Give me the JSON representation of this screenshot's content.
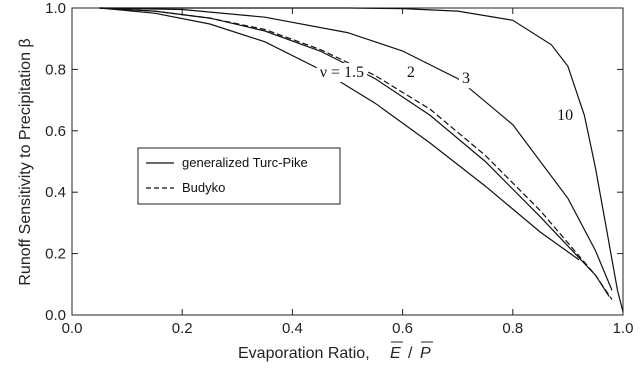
{
  "chart_data": {
    "type": "line",
    "xlabel": "Evaporation Ratio,",
    "xlabel_math": {
      "numerator": "E",
      "slash": "/",
      "denominator": "P"
    },
    "ylabel": "Runoff Sensitivity to Precipitation β",
    "xlim": [
      0.0,
      1.0
    ],
    "ylim": [
      0.0,
      1.0
    ],
    "x_ticks": [
      "0.0",
      "0.2",
      "0.4",
      "0.6",
      "0.8",
      "1.0"
    ],
    "y_ticks": [
      "0.0",
      "0.2",
      "0.4",
      "0.6",
      "0.8",
      "1.0"
    ],
    "legend": {
      "placement": "center-left",
      "entries": [
        {
          "label": "generalized Turc-Pike",
          "style": "solid"
        },
        {
          "label": "Budyko",
          "style": "dashed"
        }
      ]
    },
    "series": [
      {
        "label": "ν = 1.5",
        "style": "solid",
        "nu": 1.5,
        "x": [
          0.05,
          0.15,
          0.25,
          0.35,
          0.45,
          0.55,
          0.65,
          0.75,
          0.85,
          0.92
        ],
        "y": [
          1.0,
          0.983,
          0.948,
          0.89,
          0.8,
          0.69,
          0.56,
          0.42,
          0.27,
          0.18
        ]
      },
      {
        "label": "2",
        "style": "solid",
        "nu": 2,
        "x": [
          0.05,
          0.15,
          0.25,
          0.35,
          0.45,
          0.55,
          0.65,
          0.75,
          0.85,
          0.95,
          0.975
        ],
        "y": [
          1.0,
          0.99,
          0.967,
          0.925,
          0.86,
          0.77,
          0.65,
          0.5,
          0.32,
          0.13,
          0.06
        ]
      },
      {
        "label": "3",
        "style": "solid",
        "nu": 3,
        "x": [
          0.05,
          0.2,
          0.35,
          0.5,
          0.6,
          0.7,
          0.8,
          0.9,
          0.95,
          0.98
        ],
        "y": [
          1.0,
          0.995,
          0.97,
          0.92,
          0.86,
          0.77,
          0.62,
          0.38,
          0.21,
          0.08
        ]
      },
      {
        "label": "10",
        "style": "solid",
        "nu": 10,
        "x": [
          0.05,
          0.3,
          0.5,
          0.6,
          0.7,
          0.8,
          0.87,
          0.9,
          0.93,
          0.95,
          0.97,
          0.99,
          1.0
        ],
        "y": [
          1.0,
          1.0,
          1.0,
          0.998,
          0.99,
          0.96,
          0.88,
          0.81,
          0.65,
          0.48,
          0.28,
          0.08,
          0.01
        ]
      },
      {
        "label": "",
        "style": "dashed",
        "name": "Budyko",
        "x": [
          0.05,
          0.15,
          0.25,
          0.35,
          0.45,
          0.55,
          0.65,
          0.75,
          0.85,
          0.95,
          0.98
        ],
        "y": [
          1.0,
          0.99,
          0.967,
          0.93,
          0.865,
          0.78,
          0.67,
          0.52,
          0.34,
          0.13,
          0.05
        ]
      }
    ],
    "grid": false
  }
}
